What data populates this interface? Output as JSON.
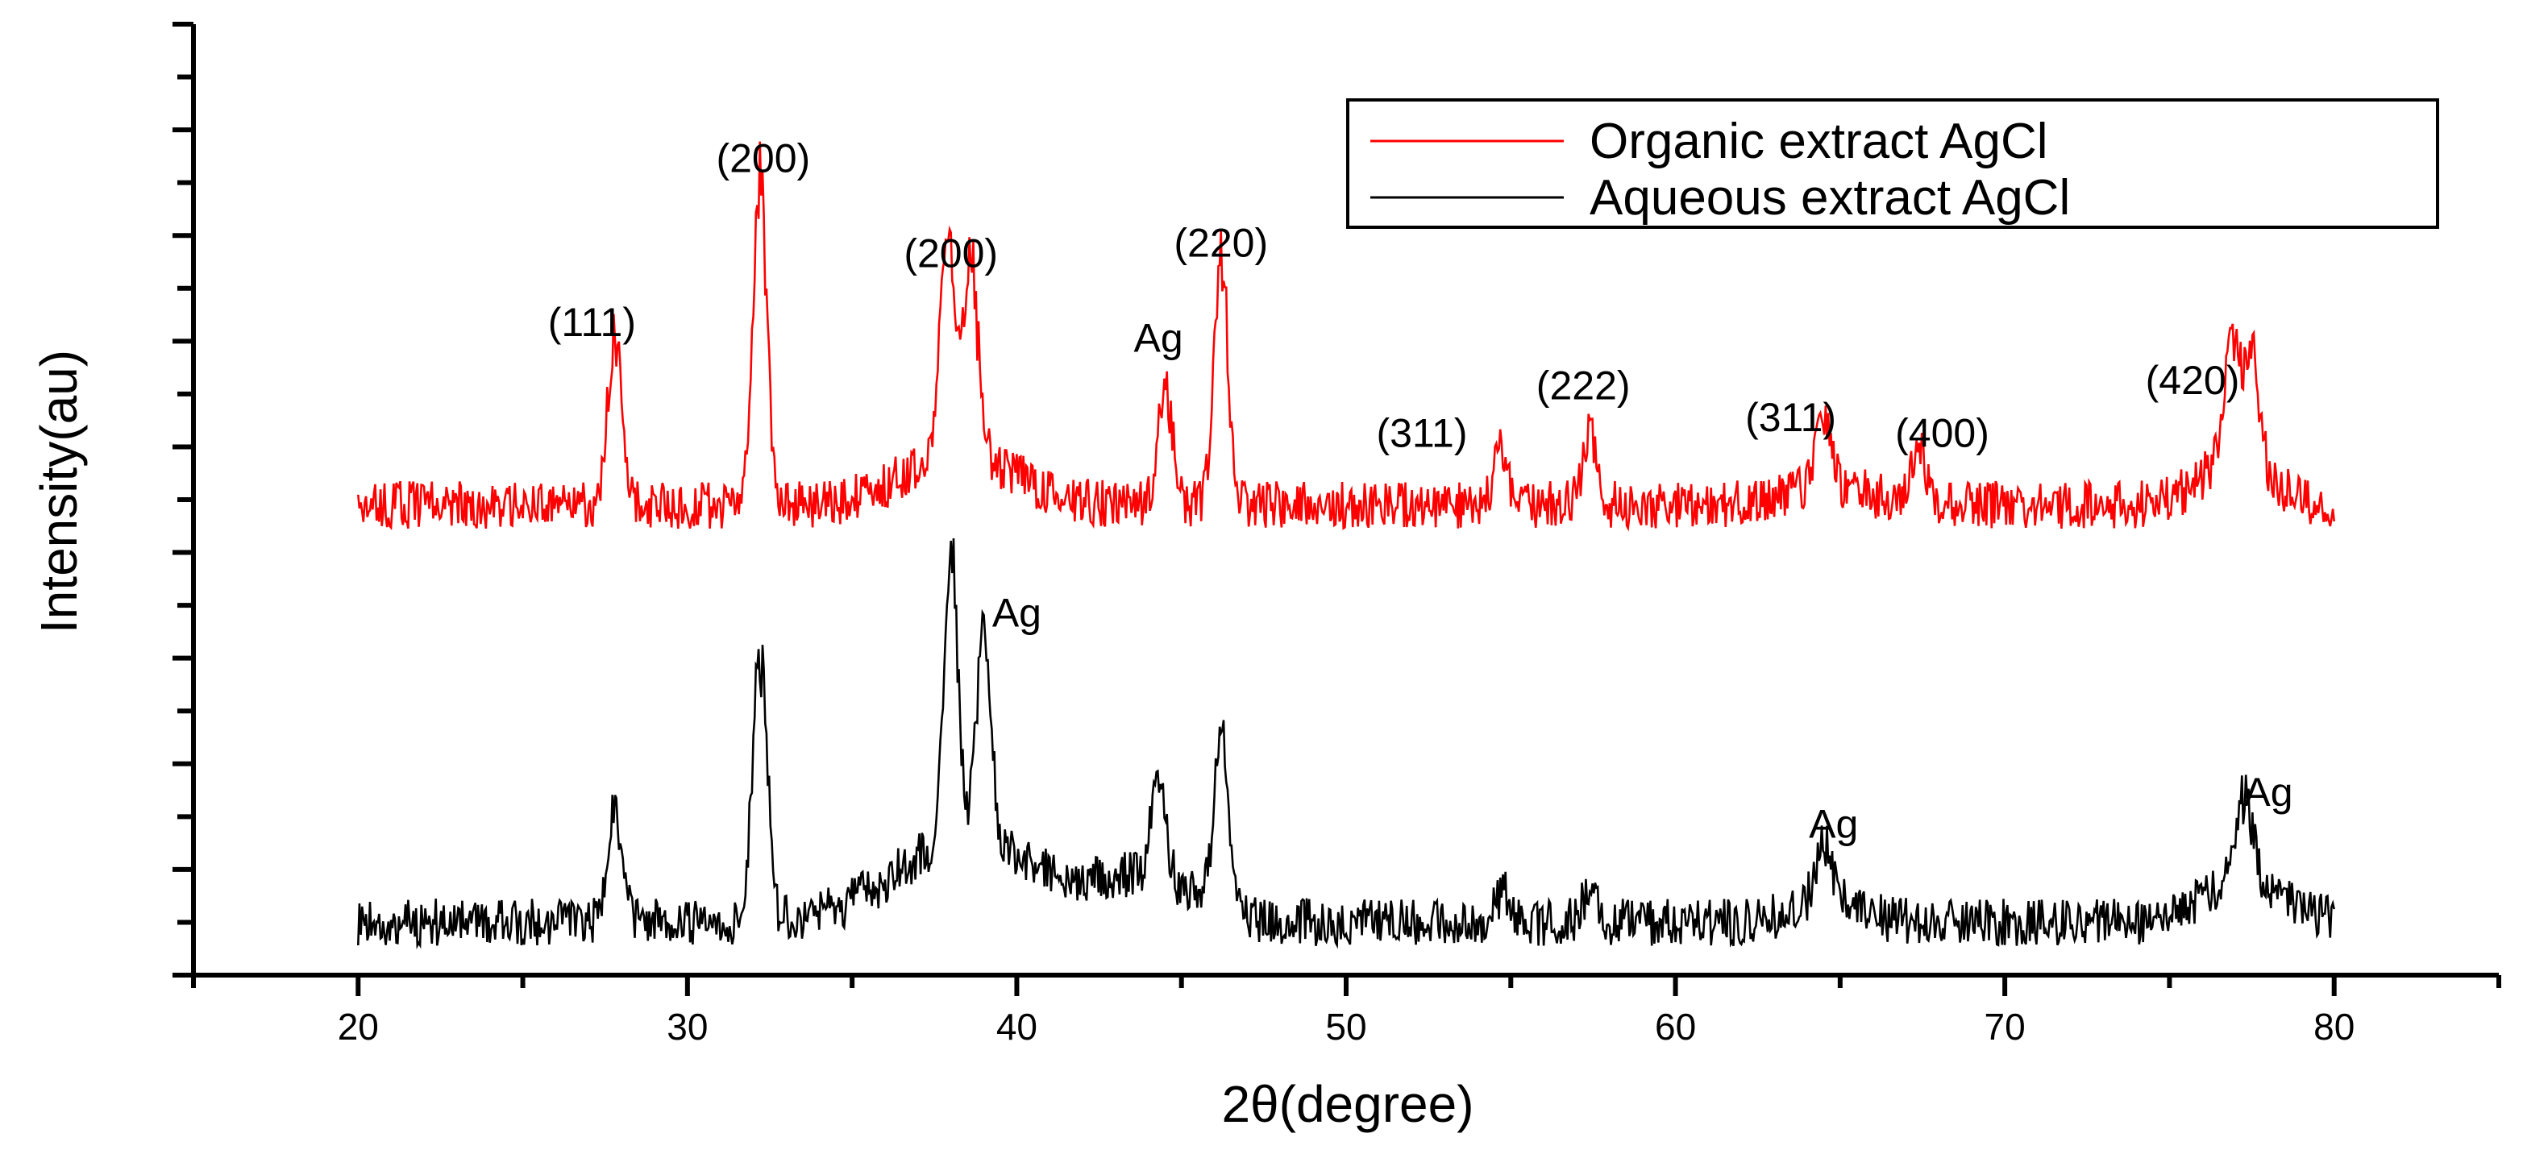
{
  "chart_data": {
    "type": "line",
    "xlabel": "2θ(degree)",
    "ylabel": "Intensity(au)",
    "xlim": [
      15,
      85
    ],
    "ylim": [
      0,
      18
    ],
    "x_ticks": [
      20,
      30,
      40,
      50,
      60,
      70,
      80
    ],
    "y_tick_labels_shown": false,
    "grid": false,
    "legend_position": "top-right",
    "series": [
      {
        "name": "Organic extract AgCl",
        "color": "#ff0000",
        "baseline": 8.9,
        "peaks": [
          {
            "x": 27.8,
            "y": 12.3
          },
          {
            "x": 32.2,
            "y": 15.3
          },
          {
            "x": 37.9,
            "y": 13.3
          },
          {
            "x": 38.6,
            "y": 12.8
          },
          {
            "x": 44.5,
            "y": 11.2
          },
          {
            "x": 46.2,
            "y": 13.6
          },
          {
            "x": 54.7,
            "y": 10.0
          },
          {
            "x": 57.4,
            "y": 10.4
          },
          {
            "x": 64.5,
            "y": 10.3
          },
          {
            "x": 67.4,
            "y": 10.0
          },
          {
            "x": 76.9,
            "y": 11.3
          },
          {
            "x": 77.5,
            "y": 11.1
          }
        ]
      },
      {
        "name": "Aqueous extract AgCl",
        "color": "#000000",
        "baseline": 1.0,
        "peaks": [
          {
            "x": 27.8,
            "y": 3.3
          },
          {
            "x": 32.2,
            "y": 6.4
          },
          {
            "x": 38.0,
            "y": 6.7
          },
          {
            "x": 39.0,
            "y": 5.0
          },
          {
            "x": 44.3,
            "y": 3.0
          },
          {
            "x": 46.2,
            "y": 4.4
          },
          {
            "x": 54.8,
            "y": 1.6
          },
          {
            "x": 57.4,
            "y": 1.6
          },
          {
            "x": 64.5,
            "y": 2.0
          },
          {
            "x": 77.3,
            "y": 2.8
          }
        ]
      }
    ],
    "annotations": [
      {
        "text": "(111)",
        "x": 27.1,
        "y": 12.1
      },
      {
        "text": "(200)",
        "x": 32.3,
        "y": 15.2
      },
      {
        "text": "(200)",
        "x": 38.0,
        "y": 13.4
      },
      {
        "text": "Ag",
        "x": 44.3,
        "y": 11.8
      },
      {
        "text": "(220)",
        "x": 46.2,
        "y": 13.6
      },
      {
        "text": "(311)",
        "x": 52.3,
        "y": 10.0
      },
      {
        "text": "(222)",
        "x": 57.2,
        "y": 10.9
      },
      {
        "text": "(311)",
        "x": 63.5,
        "y": 10.3
      },
      {
        "text": "(400)",
        "x": 68.1,
        "y": 10.0
      },
      {
        "text": "(420)",
        "x": 75.7,
        "y": 11.0
      },
      {
        "text": "Ag",
        "x": 40.0,
        "y": 6.6
      },
      {
        "text": "Ag",
        "x": 64.8,
        "y": 2.6
      },
      {
        "text": "Ag",
        "x": 78.0,
        "y": 3.2
      }
    ]
  }
}
